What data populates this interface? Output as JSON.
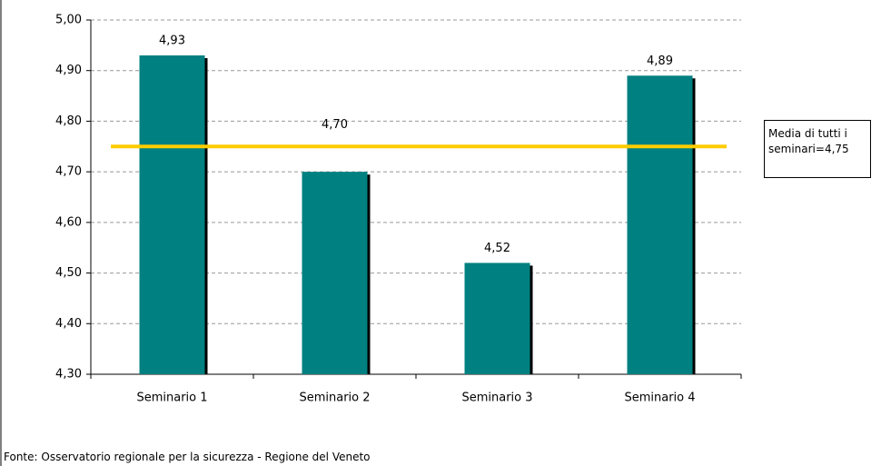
{
  "chart_data": {
    "type": "bar",
    "categories": [
      "Seminario 1",
      "Seminario 2",
      "Seminario 3",
      "Seminario 4"
    ],
    "values": [
      4.93,
      4.7,
      4.52,
      4.89
    ],
    "value_labels": [
      "4,93",
      "4,70",
      "4,52",
      "4,89"
    ],
    "color": "#008080",
    "ylim": [
      4.3,
      5.0
    ],
    "yticks": [
      {
        "value": 4.3,
        "label": "4,30"
      },
      {
        "value": 4.4,
        "label": "4,40"
      },
      {
        "value": 4.5,
        "label": "4,50"
      },
      {
        "value": 4.6,
        "label": "4,60"
      },
      {
        "value": 4.7,
        "label": "4,70"
      },
      {
        "value": 4.8,
        "label": "4,80"
      },
      {
        "value": 4.9,
        "label": "4,90"
      },
      {
        "value": 5.0,
        "label": "5,00"
      }
    ],
    "grid": true,
    "reference_line": {
      "value": 4.75,
      "color": "#ffcc00",
      "label": "Media di tutti i seminari=4,75"
    },
    "source": "Fonte: Osservatorio regionale per la sicurezza - Regione del Veneto"
  }
}
